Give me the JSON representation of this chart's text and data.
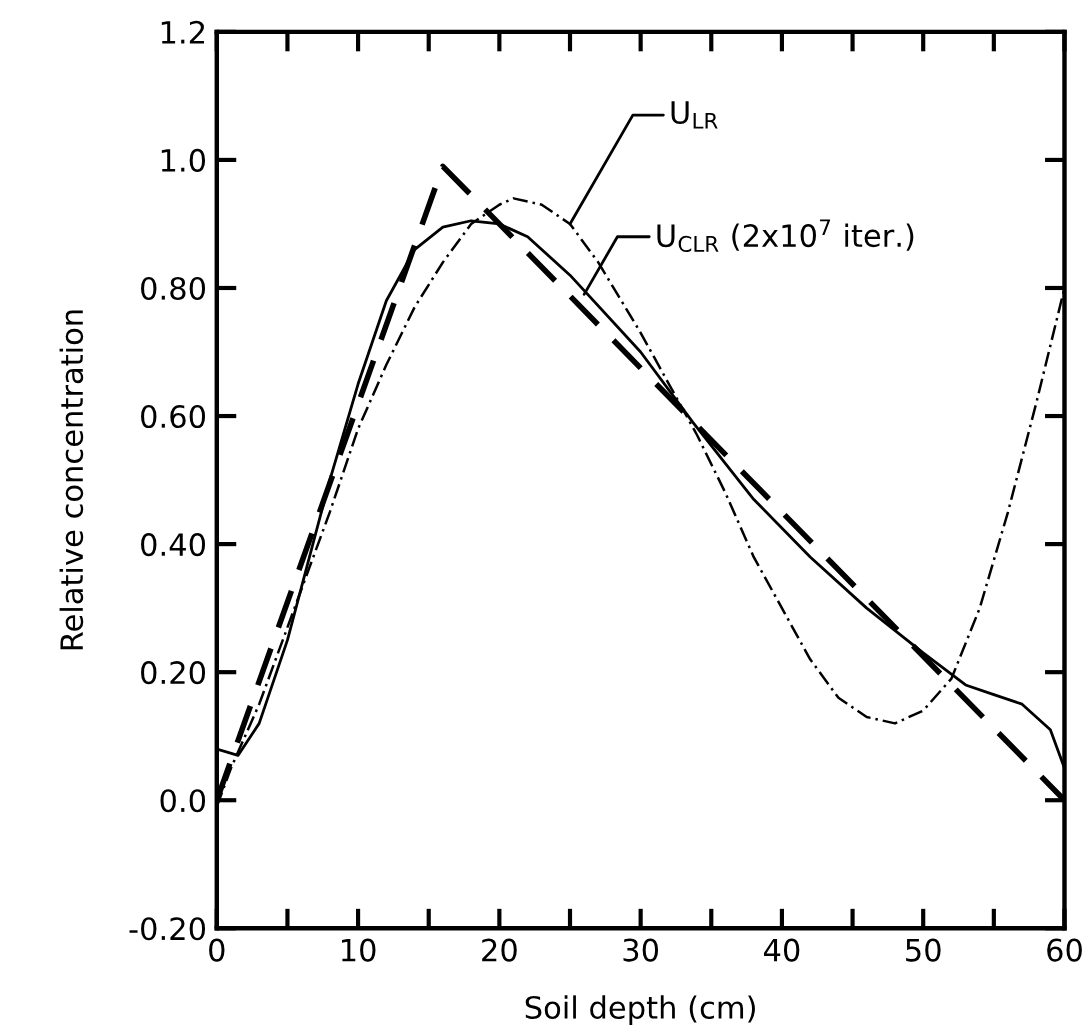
{
  "chart_data": {
    "type": "line",
    "xlabel": "Soil depth (cm)",
    "ylabel": "Relative concentration",
    "xlim": [
      0,
      60
    ],
    "ylim": [
      -0.2,
      1.2
    ],
    "xticks": [
      0,
      {
        "value": 5,
        "label": null
      },
      10,
      {
        "value": 15,
        "label": null
      },
      20,
      {
        "value": 25,
        "label": null
      },
      30,
      {
        "value": 35,
        "label": null
      },
      40,
      {
        "value": 45,
        "label": null
      },
      50,
      {
        "value": 55,
        "label": null
      },
      60
    ],
    "yticks": [
      {
        "value": -0.2,
        "label": "-0.20"
      },
      {
        "value": 0,
        "label": "0.0"
      },
      {
        "value": 0.2,
        "label": "0.20"
      },
      {
        "value": 0.4,
        "label": "0.40"
      },
      {
        "value": 0.6,
        "label": "0.60"
      },
      {
        "value": 0.8,
        "label": "0.80"
      },
      {
        "value": 1.0,
        "label": "1.0"
      },
      1.2
    ],
    "grid": false,
    "annotations": [
      {
        "text": "U$_{LR}$",
        "x": 25,
        "y": 0.9
      },
      {
        "text": "U$_{CLR}$ (2x10$^{7}$ iter.)",
        "x": 26,
        "y": 0.79
      }
    ],
    "series": [
      {
        "color": "#000000",
        "line_style": "dashed",
        "x": [
          0,
          16,
          60
        ],
        "values": [
          0,
          0.99,
          0
        ]
      },
      {
        "color": "#000000",
        "line_style": "dashdot",
        "x": [
          0,
          1,
          3,
          5,
          8,
          10,
          12,
          14,
          16,
          18,
          20,
          21,
          23,
          25,
          27,
          30,
          32,
          34,
          36,
          38,
          40,
          42,
          44,
          46,
          48,
          50,
          52,
          54,
          56,
          58,
          60
        ],
        "values": [
          -0.01,
          0.05,
          0.15,
          0.27,
          0.45,
          0.58,
          0.68,
          0.77,
          0.84,
          0.9,
          0.93,
          0.94,
          0.93,
          0.9,
          0.84,
          0.73,
          0.65,
          0.57,
          0.48,
          0.38,
          0.3,
          0.22,
          0.16,
          0.13,
          0.12,
          0.14,
          0.19,
          0.3,
          0.45,
          0.62,
          0.8
        ]
      },
      {
        "color": "#000000",
        "line_style": "solid",
        "x": [
          0,
          1.5,
          3,
          5,
          8,
          10,
          12,
          14,
          16,
          18,
          20,
          22,
          25,
          30,
          33.7,
          38,
          42,
          46,
          50,
          53,
          55,
          57,
          59,
          60
        ],
        "values": [
          0.08,
          0.07,
          0.12,
          0.25,
          0.5,
          0.65,
          0.78,
          0.86,
          0.895,
          0.905,
          0.9,
          0.88,
          0.82,
          0.7,
          0.59,
          0.47,
          0.38,
          0.3,
          0.23,
          0.18,
          0.165,
          0.15,
          0.11,
          0.05
        ]
      }
    ]
  }
}
